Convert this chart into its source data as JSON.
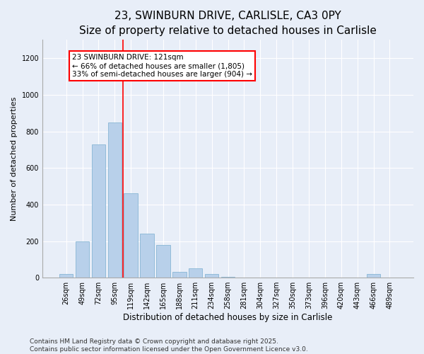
{
  "title1": "23, SWINBURN DRIVE, CARLISLE, CA3 0PY",
  "title2": "Size of property relative to detached houses in Carlisle",
  "xlabel": "Distribution of detached houses by size in Carlisle",
  "ylabel": "Number of detached properties",
  "categories": [
    "26sqm",
    "49sqm",
    "72sqm",
    "95sqm",
    "119sqm",
    "142sqm",
    "165sqm",
    "188sqm",
    "211sqm",
    "234sqm",
    "258sqm",
    "281sqm",
    "304sqm",
    "327sqm",
    "350sqm",
    "373sqm",
    "396sqm",
    "420sqm",
    "443sqm",
    "466sqm",
    "489sqm"
  ],
  "values": [
    20,
    200,
    730,
    850,
    460,
    240,
    180,
    30,
    50,
    20,
    5,
    2,
    0,
    0,
    1,
    0,
    0,
    0,
    0,
    20,
    1
  ],
  "bar_color": "#b8d0ea",
  "bar_edgecolor": "#7aaed0",
  "vline_color": "red",
  "annotation_text": "23 SWINBURN DRIVE: 121sqm\n← 66% of detached houses are smaller (1,805)\n33% of semi-detached houses are larger (904) →",
  "annotation_box_color": "white",
  "annotation_box_edgecolor": "red",
  "ylim": [
    0,
    1300
  ],
  "yticks": [
    0,
    200,
    400,
    600,
    800,
    1000,
    1200
  ],
  "bg_color": "#e8eef8",
  "plot_bg_color": "#e8eef8",
  "footnote1": "Contains HM Land Registry data © Crown copyright and database right 2025.",
  "footnote2": "Contains public sector information licensed under the Open Government Licence v3.0.",
  "title1_fontsize": 11,
  "title2_fontsize": 9.5,
  "annotation_fontsize": 7.5,
  "tick_fontsize": 7,
  "xlabel_fontsize": 8.5,
  "ylabel_fontsize": 8,
  "footnote_fontsize": 6.5,
  "vline_x_index": 4,
  "grid_color": "white",
  "grid_lw": 0.8
}
